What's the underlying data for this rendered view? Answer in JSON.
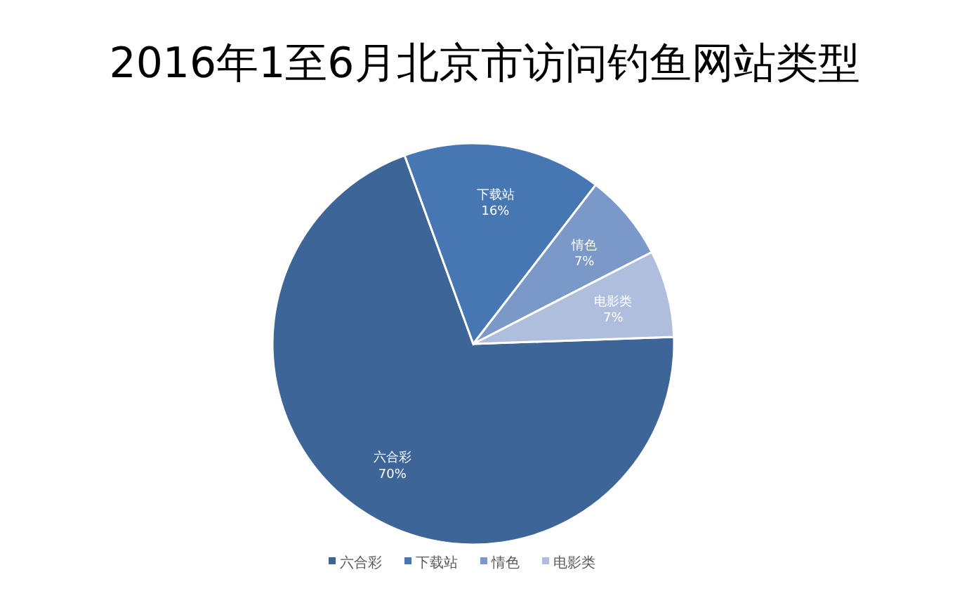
{
  "chart_data": {
    "type": "pie",
    "title": "2016年1至6月北京市访问钓鱼网站类型",
    "categories": [
      "六合彩",
      "下载站",
      "情色",
      "电影类"
    ],
    "values": [
      70,
      16,
      7,
      7
    ],
    "colors": [
      "#3d6598",
      "#4677b3",
      "#7a98c8",
      "#afbedc"
    ],
    "value_labels": [
      "70%",
      "16%",
      "7%",
      "7%"
    ],
    "legend": "bottom"
  }
}
